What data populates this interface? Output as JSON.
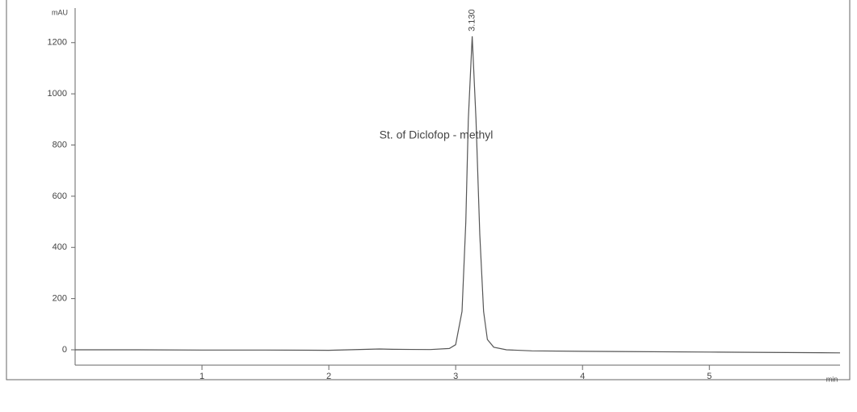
{
  "chart_data": {
    "type": "line",
    "ylabel": "mAU",
    "xlabel": "min",
    "annotation": "St. of Diclofop - methyl",
    "peak_label": {
      "value": 3.13,
      "label": "3.130"
    },
    "x": [
      0,
      0.5,
      1,
      1.5,
      2,
      2.4,
      2.5,
      2.8,
      2.95,
      3.0,
      3.05,
      3.08,
      3.1,
      3.13,
      3.16,
      3.19,
      3.22,
      3.25,
      3.3,
      3.4,
      3.6,
      4,
      5,
      6.03
    ],
    "values": [
      0,
      0,
      -1,
      -1,
      -2,
      3,
      2,
      1,
      5,
      20,
      150,
      500,
      900,
      1225,
      900,
      450,
      150,
      40,
      10,
      0,
      -4,
      -6,
      -9,
      -12
    ],
    "color": "#555555",
    "xlim": [
      0,
      6.03
    ],
    "ylim": [
      -60,
      1335
    ],
    "xticks": [
      1,
      2,
      3,
      4,
      5
    ],
    "yticks": [
      0,
      200,
      400,
      600,
      800,
      1000,
      1200
    ]
  }
}
